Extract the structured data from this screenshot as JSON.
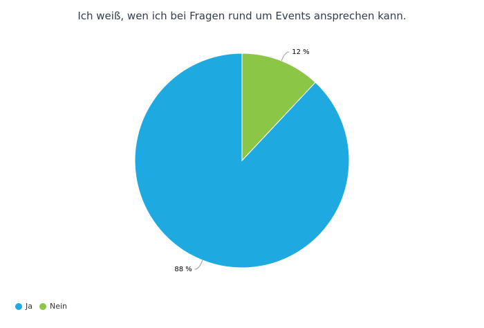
{
  "chart_data": {
    "type": "pie",
    "title": "Ich weiß, wen ich bei Fragen rund um Events ansprechen kann.",
    "categories": [
      "Ja",
      "Nein"
    ],
    "values": [
      88,
      12
    ],
    "labels": [
      "88 %",
      "12 %"
    ],
    "colors": [
      "#1fa9e1",
      "#8bc647"
    ],
    "legend_position": "bottom-left",
    "start_angle_deg": 0,
    "direction": "counterclockwise"
  },
  "legend": {
    "items": [
      {
        "label": "Ja",
        "color": "#1fa9e1"
      },
      {
        "label": "Nein",
        "color": "#8bc647"
      }
    ]
  }
}
